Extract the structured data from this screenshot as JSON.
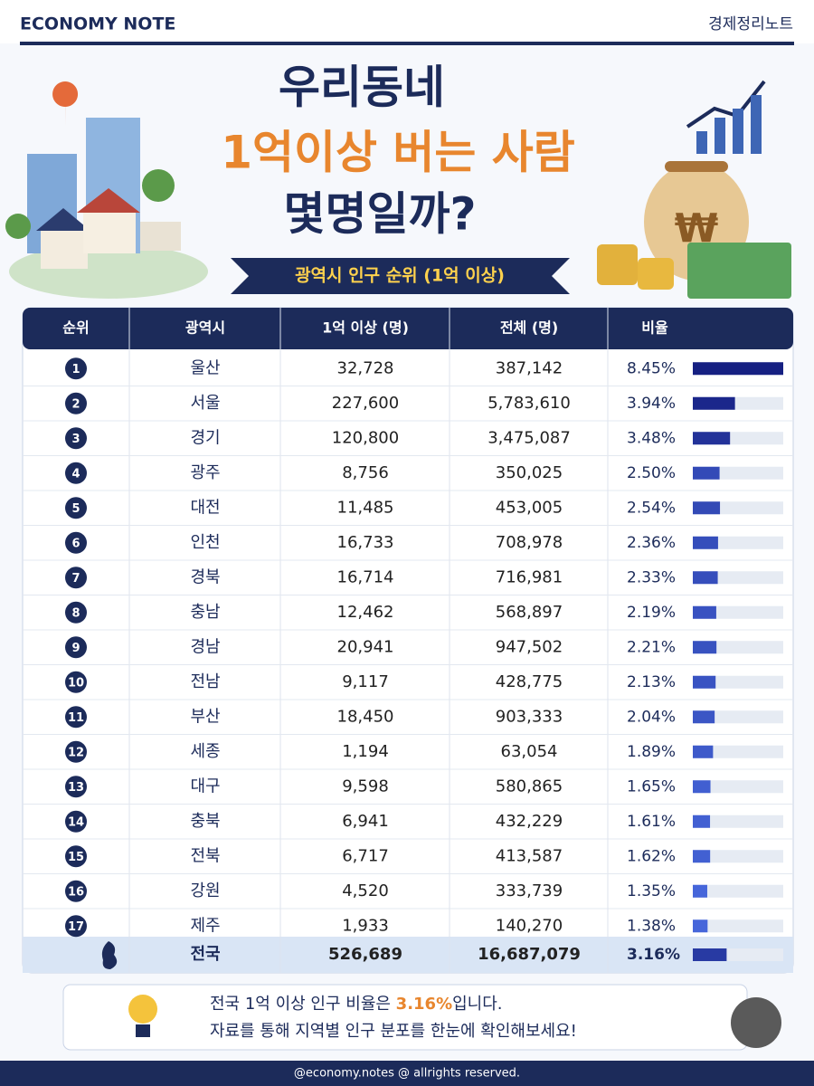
{
  "header": {
    "brand": "ECONOMY NOTE",
    "brand_kr": "경제정리노트"
  },
  "title": {
    "line1": "우리동네",
    "line2": "1억이상 버는 사람",
    "line3": "몇명일까?",
    "banner": "광역시 인구 순위 (1억 이상)"
  },
  "table": {
    "columns": [
      "순위",
      "광역시",
      "1억 이상 (명)",
      "전체 (명)",
      "비율"
    ],
    "rows": [
      {
        "rank": "1",
        "region": "울산",
        "high": "32,728",
        "total": "387,142",
        "ratio": {
          "value": 8.45,
          "label": "8.45%"
        }
      },
      {
        "rank": "2",
        "region": "서울",
        "high": "227,600",
        "total": "5,783,610",
        "ratio": {
          "value": 3.94,
          "label": "3.94%"
        }
      },
      {
        "rank": "3",
        "region": "경기",
        "high": "120,800",
        "total": "3,475,087",
        "ratio": {
          "value": 3.48,
          "label": "3.48%"
        }
      },
      {
        "rank": "4",
        "region": "광주",
        "high": "8,756",
        "total": "350,025",
        "ratio": {
          "value": 2.5,
          "label": "2.50%"
        }
      },
      {
        "rank": "5",
        "region": "대전",
        "high": "11,485",
        "total": "453,005",
        "ratio": {
          "value": 2.54,
          "label": "2.54%"
        }
      },
      {
        "rank": "6",
        "region": "인천",
        "high": "16,733",
        "total": "708,978",
        "ratio": {
          "value": 2.36,
          "label": "2.36%"
        }
      },
      {
        "rank": "7",
        "region": "경북",
        "high": "16,714",
        "total": "716,981",
        "ratio": {
          "value": 2.33,
          "label": "2.33%"
        }
      },
      {
        "rank": "8",
        "region": "충남",
        "high": "12,462",
        "total": "568,897",
        "ratio": {
          "value": 2.19,
          "label": "2.19%"
        }
      },
      {
        "rank": "9",
        "region": "경남",
        "high": "20,941",
        "total": "947,502",
        "ratio": {
          "value": 2.21,
          "label": "2.21%"
        }
      },
      {
        "rank": "10",
        "region": "전남",
        "high": "9,117",
        "total": "428,775",
        "ratio": {
          "value": 2.13,
          "label": "2.13%"
        }
      },
      {
        "rank": "11",
        "region": "부산",
        "high": "18,450",
        "total": "903,333",
        "ratio": {
          "value": 2.04,
          "label": "2.04%"
        }
      },
      {
        "rank": "12",
        "region": "세종",
        "high": "1,194",
        "total": "63,054",
        "ratio": {
          "value": 1.89,
          "label": "1.89%"
        }
      },
      {
        "rank": "13",
        "region": "대구",
        "high": "9,598",
        "total": "580,865",
        "ratio": {
          "value": 1.65,
          "label": "1.65%"
        }
      },
      {
        "rank": "14",
        "region": "충북",
        "high": "6,941",
        "total": "432,229",
        "ratio": {
          "value": 1.61,
          "label": "1.61%"
        }
      },
      {
        "rank": "15",
        "region": "전북",
        "high": "6,717",
        "total": "413,587",
        "ratio": {
          "value": 1.62,
          "label": "1.62%"
        }
      },
      {
        "rank": "16",
        "region": "강원",
        "high": "4,520",
        "total": "333,739",
        "ratio": {
          "value": 1.35,
          "label": "1.35%"
        }
      },
      {
        "rank": "17",
        "region": "제주",
        "high": "1,933",
        "total": "140,270",
        "ratio": {
          "value": 1.38,
          "label": "1.38%"
        }
      }
    ],
    "total": {
      "region": "전국",
      "high": "526,689",
      "total": "16,687,079",
      "ratio": {
        "value": 3.16,
        "label": "3.16%"
      }
    }
  },
  "footer": {
    "line1_pre": "전국 1억 이상 인구 비율은 ",
    "line1_highlight": "3.16%",
    "line1_post": "입니다.",
    "line2": "자료를 통해 지역별 인구 분포를 한눈에 확인해보세요!",
    "credit": "@economy.notes   @ allrights reserved."
  }
}
